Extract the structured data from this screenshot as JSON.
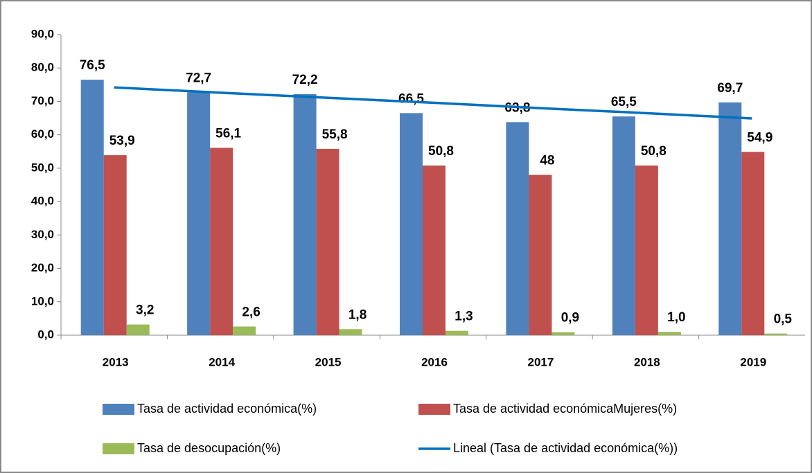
{
  "chart_data": {
    "type": "bar",
    "categories": [
      "2013",
      "2014",
      "2015",
      "2016",
      "2017",
      "2018",
      "2019"
    ],
    "series": [
      {
        "name": "Tasa de actividad económica(%)",
        "color": "#4f81bd",
        "values": [
          76.5,
          72.7,
          72.2,
          66.5,
          63.8,
          65.5,
          69.7
        ],
        "value_labels": [
          "76,5",
          "72,7",
          "72,2",
          "66,5",
          "63,8",
          "65,5",
          "69,7"
        ]
      },
      {
        "name": "Tasa de actividad económicaMujeres(%)",
        "color": "#c0504d",
        "values": [
          53.9,
          56.1,
          55.8,
          50.8,
          48,
          50.8,
          54.9
        ],
        "value_labels": [
          "53,9",
          "56,1",
          "55,8",
          "50,8",
          "48",
          "50,8",
          "54,9"
        ]
      },
      {
        "name": "Tasa de desocupación(%)",
        "color": "#9bbb59",
        "values": [
          3.2,
          2.6,
          1.8,
          1.3,
          0.9,
          1.0,
          0.5
        ],
        "value_labels": [
          "3,2",
          "2,6",
          "1,8",
          "1,3",
          "0,9",
          "1,0",
          "0,5"
        ]
      },
      {
        "name": "Lineal (Tasa de actividad económica(%))",
        "color": "#0070c0",
        "type": "line",
        "values": [
          74.2,
          72.6,
          71.1,
          69.6,
          68.0,
          66.5,
          64.9
        ]
      }
    ],
    "ylim": [
      0,
      90
    ],
    "yticks": [
      {
        "value": 0,
        "label": "0,0"
      },
      {
        "value": 10,
        "label": "10,0"
      },
      {
        "value": 20,
        "label": "20,0"
      },
      {
        "value": 30,
        "label": "30,0"
      },
      {
        "value": 40,
        "label": "40,0"
      },
      {
        "value": 50,
        "label": "50,0"
      },
      {
        "value": 60,
        "label": "60,0"
      },
      {
        "value": 70,
        "label": "70,0"
      },
      {
        "value": 80,
        "label": "80,0"
      },
      {
        "value": 90,
        "label": "90,0"
      }
    ],
    "legend": "bottom"
  }
}
